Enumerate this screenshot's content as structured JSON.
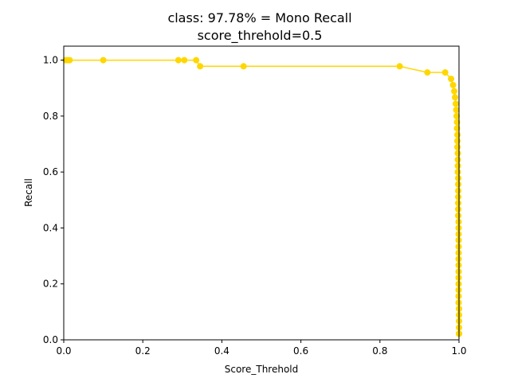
{
  "chart_data": {
    "type": "line",
    "title": "class: 97.78% = Mono Recall",
    "subtitle": "score_threhold=0.5",
    "xlabel": "Score_Threhold",
    "ylabel": "Recall",
    "xlim": [
      0.0,
      1.0
    ],
    "ylim": [
      0.0,
      1.05
    ],
    "xticks": [
      "0.0",
      "0.2",
      "0.4",
      "0.6",
      "0.8",
      "1.0"
    ],
    "yticks": [
      "0.0",
      "0.2",
      "0.4",
      "0.6",
      "0.8",
      "1.0"
    ],
    "grid": false,
    "color": "#FFD700",
    "series": [
      {
        "x": [
          0.005,
          0.01,
          0.015,
          0.1,
          0.29,
          0.305,
          0.335,
          0.345,
          0.455,
          0.85,
          0.92,
          0.965,
          0.98,
          0.985,
          0.988,
          0.99,
          0.992,
          0.993,
          0.994,
          0.995,
          0.995,
          0.996,
          0.996,
          0.996,
          0.997,
          0.997,
          0.997,
          0.997,
          0.998,
          0.998,
          0.998,
          0.998,
          0.998,
          0.998,
          0.998,
          0.999,
          0.999,
          0.999,
          0.999,
          0.999,
          0.999,
          0.999,
          0.999,
          0.999,
          0.999,
          0.999,
          0.999,
          0.999,
          0.999,
          1.0,
          1.0,
          1.0,
          1.0,
          1.0,
          1.0,
          1.0
        ],
        "y": [
          1.0,
          1.0,
          1.0,
          1.0,
          1.0,
          1.0,
          1.0,
          0.978,
          0.978,
          0.978,
          0.956,
          0.956,
          0.933,
          0.911,
          0.889,
          0.867,
          0.844,
          0.822,
          0.8,
          0.778,
          0.756,
          0.733,
          0.711,
          0.689,
          0.667,
          0.644,
          0.622,
          0.6,
          0.578,
          0.556,
          0.533,
          0.511,
          0.489,
          0.467,
          0.444,
          0.422,
          0.4,
          0.378,
          0.356,
          0.333,
          0.311,
          0.289,
          0.267,
          0.244,
          0.222,
          0.2,
          0.178,
          0.156,
          0.133,
          0.111,
          0.089,
          0.067,
          0.044,
          0.022,
          0.022,
          0.022
        ]
      }
    ]
  }
}
